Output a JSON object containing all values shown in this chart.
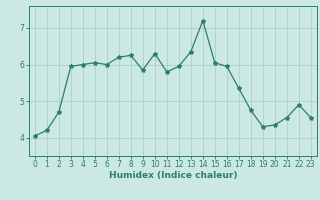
{
  "x": [
    0,
    1,
    2,
    3,
    4,
    5,
    6,
    7,
    8,
    9,
    10,
    11,
    12,
    13,
    14,
    15,
    16,
    17,
    18,
    19,
    20,
    21,
    22,
    23
  ],
  "y": [
    4.05,
    4.2,
    4.7,
    5.95,
    6.0,
    6.05,
    6.0,
    6.2,
    6.25,
    5.85,
    6.3,
    5.8,
    5.95,
    6.35,
    7.2,
    6.05,
    5.95,
    5.35,
    4.75,
    4.3,
    4.35,
    4.55,
    4.9,
    4.55
  ],
  "line_color": "#2d7d6f",
  "marker": "*",
  "marker_size": 3,
  "xlabel": "Humidex (Indice chaleur)",
  "ylim": [
    3.5,
    7.6
  ],
  "xlim": [
    -0.5,
    23.5
  ],
  "yticks": [
    4,
    5,
    6,
    7
  ],
  "xticks": [
    0,
    1,
    2,
    3,
    4,
    5,
    6,
    7,
    8,
    9,
    10,
    11,
    12,
    13,
    14,
    15,
    16,
    17,
    18,
    19,
    20,
    21,
    22,
    23
  ],
  "bg_color": "#cce8e4",
  "grid_color": "#aacfcb",
  "axis_color": "#2d7d6f",
  "tick_color": "#2d7d6f",
  "label_fontsize": 6.5,
  "tick_fontsize": 5.5,
  "linewidth": 0.9
}
